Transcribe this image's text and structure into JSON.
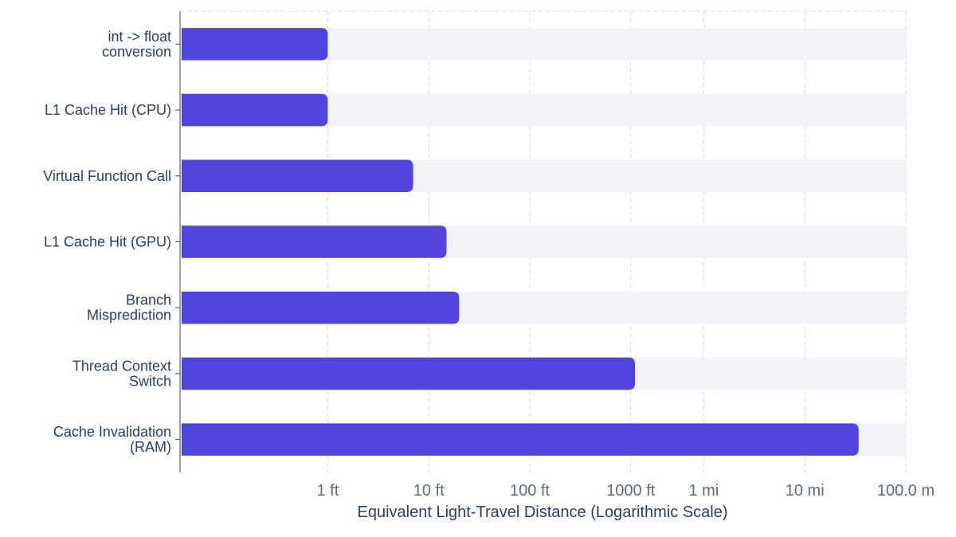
{
  "chart_data": {
    "type": "bar",
    "orientation": "horizontal",
    "title": "",
    "xlabel": "Equivalent Light-Travel Distance (Logarithmic Scale)",
    "ylabel": "",
    "x_scale": "log",
    "x_unit": "ft",
    "xlim_ft": [
      0.0345,
      528000
    ],
    "grid": true,
    "legend": "none",
    "colors": {
      "bar": "#5145dd",
      "track": "#f2f3f6",
      "grid": "#d4d8de",
      "axis": "#3b4a5a"
    },
    "x_ticks": [
      {
        "value_ft": 1,
        "label": "1 ft"
      },
      {
        "value_ft": 10,
        "label": "10 ft"
      },
      {
        "value_ft": 100,
        "label": "100 ft"
      },
      {
        "value_ft": 1000,
        "label": "1000 ft"
      },
      {
        "value_ft": 5280,
        "label": "1 mi"
      },
      {
        "value_ft": 52800,
        "label": "10 mi"
      },
      {
        "value_ft": 528000,
        "label": "100.0 m"
      }
    ],
    "categories": [
      [
        "int -> float",
        "conversion"
      ],
      [
        "L1 Cache Hit (CPU)"
      ],
      [
        "Virtual Function Call"
      ],
      [
        "L1 Cache Hit (GPU)"
      ],
      [
        "Branch",
        "Misprediction"
      ],
      [
        "Thread Context",
        "Switch"
      ],
      [
        "Cache Invalidation",
        "(RAM)"
      ]
    ],
    "values_ft": [
      1,
      1,
      7,
      15,
      20,
      1100,
      180000
    ]
  }
}
